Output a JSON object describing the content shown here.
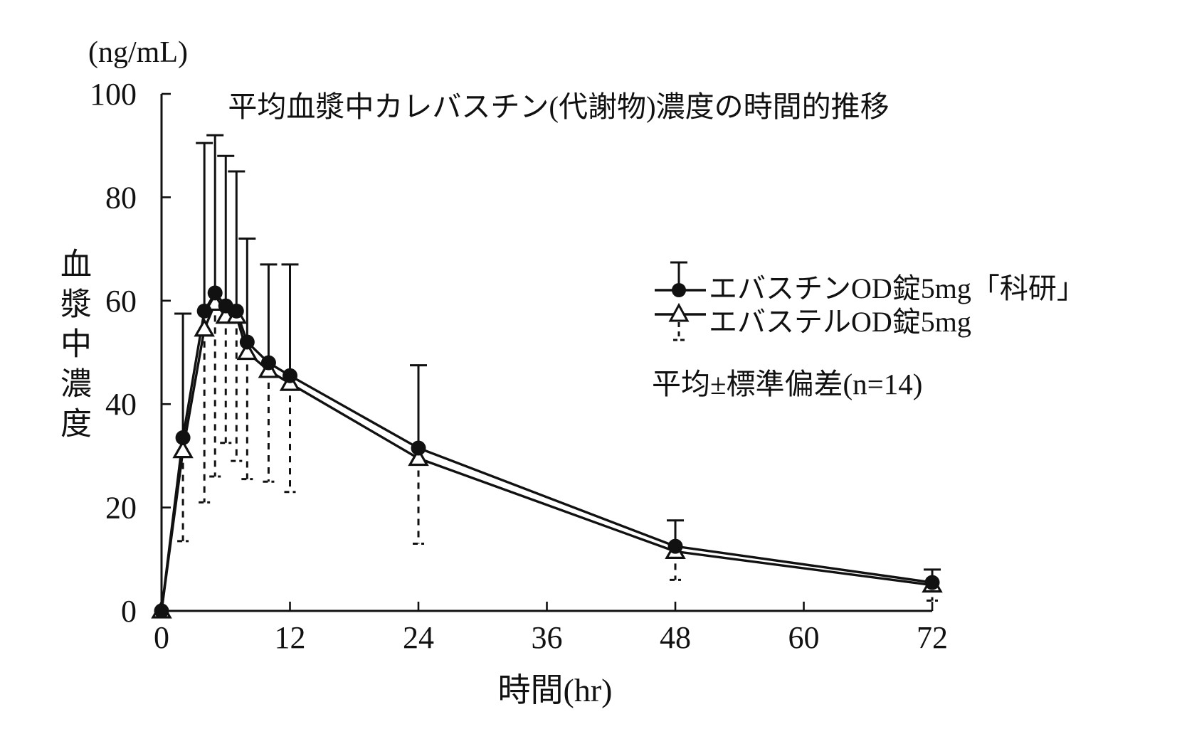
{
  "page": {
    "background": "#ffffff",
    "ink": "#111111"
  },
  "chart_data": {
    "type": "line",
    "title": "平均血漿中カレバスチン(代謝物)濃度の時間的推移",
    "y_unit_label": "(ng/mL)",
    "ylabel": "血漿中濃度",
    "xlabel": "時間(hr)",
    "stats_note": "平均±標準偏差(n=14)",
    "x_hours": [
      0,
      2,
      4,
      5,
      6,
      7,
      8,
      10,
      12,
      24,
      48,
      72
    ],
    "x_tick_values": [
      0,
      12,
      24,
      36,
      48,
      60,
      72
    ],
    "y_tick_values": [
      0,
      20,
      40,
      60,
      80,
      100
    ],
    "xlim": [
      0,
      72
    ],
    "ylim": [
      0,
      100
    ],
    "grid": false,
    "legend_position": "right-of-center",
    "series": [
      {
        "name": "エバスチンOD錠5mg「科研」",
        "marker": "filled-circle",
        "line_style": "solid",
        "error_bar": "upper-solid",
        "mean": [
          0,
          33.5,
          58,
          61.5,
          59,
          58,
          52,
          48,
          45.5,
          31.5,
          12.5,
          5.5
        ],
        "sd": [
          0,
          24,
          32.5,
          30.5,
          29,
          27,
          20,
          19,
          21.5,
          16,
          5,
          2.5
        ]
      },
      {
        "name": "エバステルOD錠5mg",
        "marker": "open-triangle",
        "line_style": "solid",
        "error_bar": "lower-dashed",
        "mean": [
          0,
          31,
          54.5,
          59.5,
          57,
          57,
          50,
          46.5,
          44,
          29.5,
          11.5,
          5
        ],
        "sd": [
          0,
          17.5,
          33.5,
          33.5,
          24.5,
          28,
          24.5,
          21.5,
          21,
          16.5,
          5.5,
          3
        ]
      }
    ]
  }
}
